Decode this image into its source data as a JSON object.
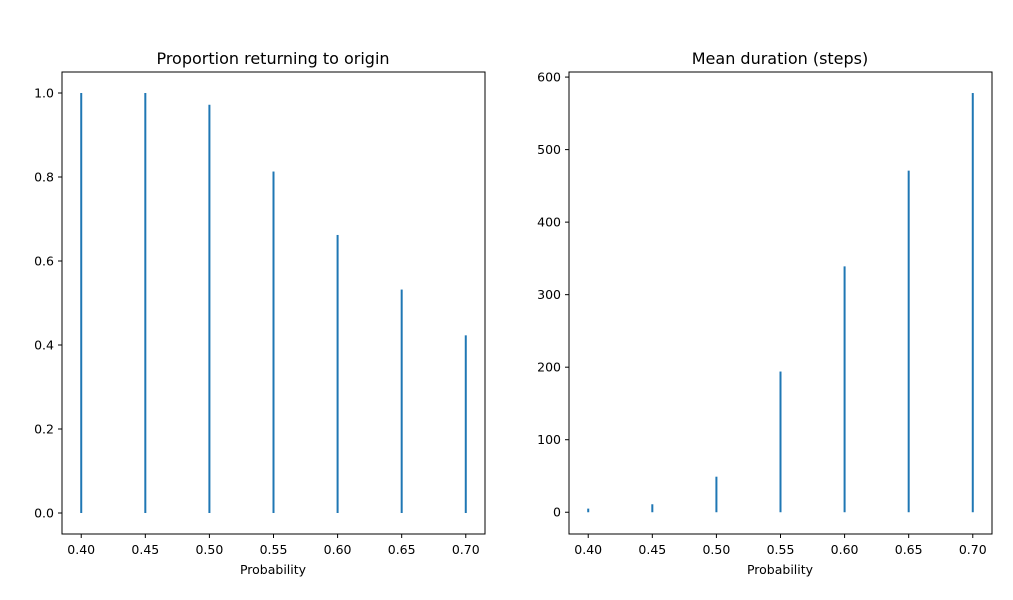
{
  "colors": {
    "bar": "#1f77b4",
    "axis": "#000000",
    "background": "#ffffff"
  },
  "chart_data": [
    {
      "type": "bar",
      "title": "Proportion returning to origin",
      "xlabel": "Probability",
      "ylabel": "",
      "x": [
        0.4,
        0.45,
        0.5,
        0.55,
        0.6,
        0.65,
        0.7
      ],
      "values": [
        1.0,
        1.0,
        0.972,
        0.813,
        0.662,
        0.532,
        0.423
      ],
      "xlim": [
        0.385,
        0.715
      ],
      "ylim": [
        -0.05,
        1.05
      ],
      "xticks": [
        "0.40",
        "0.45",
        "0.50",
        "0.55",
        "0.60",
        "0.65",
        "0.70"
      ],
      "xtick_values": [
        0.4,
        0.45,
        0.5,
        0.55,
        0.6,
        0.65,
        0.7
      ],
      "yticks": [
        "0.0",
        "0.2",
        "0.4",
        "0.6",
        "0.8",
        "1.0"
      ],
      "ytick_values": [
        0.0,
        0.2,
        0.4,
        0.6,
        0.8,
        1.0
      ],
      "grid": false,
      "legend": "none"
    },
    {
      "type": "bar",
      "title": "Mean duration (steps)",
      "xlabel": "Probability",
      "ylabel": "",
      "x": [
        0.4,
        0.45,
        0.5,
        0.55,
        0.6,
        0.65,
        0.7
      ],
      "values": [
        5,
        11,
        49,
        194,
        339,
        471,
        578
      ],
      "xlim": [
        0.385,
        0.715
      ],
      "ylim": [
        -30,
        607
      ],
      "xticks": [
        "0.40",
        "0.45",
        "0.50",
        "0.55",
        "0.60",
        "0.65",
        "0.70"
      ],
      "xtick_values": [
        0.4,
        0.45,
        0.5,
        0.55,
        0.6,
        0.65,
        0.7
      ],
      "yticks": [
        "0",
        "100",
        "200",
        "300",
        "400",
        "500",
        "600"
      ],
      "ytick_values": [
        0,
        100,
        200,
        300,
        400,
        500,
        600
      ],
      "grid": false,
      "legend": "none"
    }
  ]
}
